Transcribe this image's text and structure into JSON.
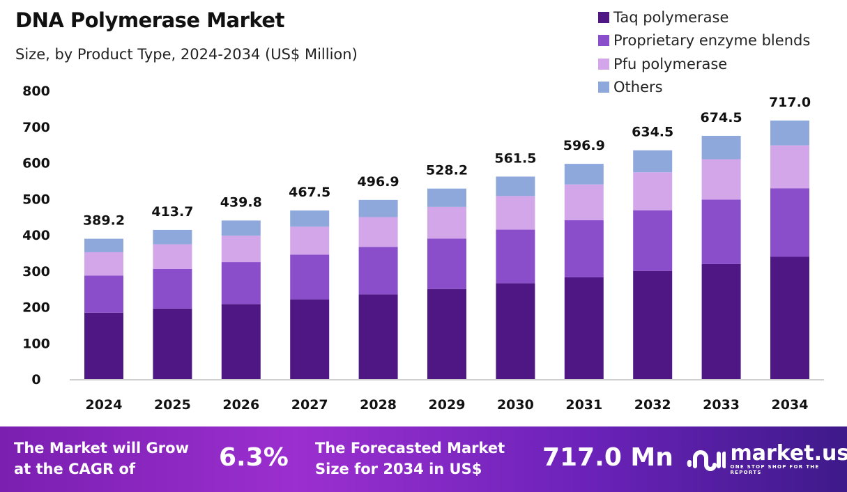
{
  "chart_data": {
    "type": "bar",
    "stacked": true,
    "title": "DNA Polymerase Market",
    "subtitle": "Size, by Product Type, 2024-2034 (US$ Million)",
    "categories": [
      "2024",
      "2025",
      "2026",
      "2027",
      "2028",
      "2029",
      "2030",
      "2031",
      "2032",
      "2033",
      "2034"
    ],
    "totals": [
      "389.2",
      "413.7",
      "439.8",
      "467.5",
      "496.9",
      "528.2",
      "561.5",
      "596.9",
      "634.5",
      "674.5",
      "717.0"
    ],
    "series": [
      {
        "name": "Taq polymerase",
        "color": "#4f1784",
        "values": [
          184.1,
          195.7,
          208.0,
          221.1,
          235.0,
          249.8,
          265.6,
          282.3,
          300.1,
          319.0,
          339.1
        ]
      },
      {
        "name": "Proprietary enzyme blends",
        "color": "#8a4ecb",
        "values": [
          103.1,
          109.6,
          116.5,
          123.9,
          131.7,
          140.0,
          148.8,
          158.2,
          168.1,
          178.7,
          190.0
        ]
      },
      {
        "name": "Pfu polymerase",
        "color": "#d3a6ea",
        "values": [
          64.6,
          68.7,
          73.0,
          77.6,
          82.5,
          87.7,
          93.2,
          99.1,
          105.3,
          112.0,
          119.0
        ]
      },
      {
        "name": "Others",
        "color": "#8fa8dc",
        "values": [
          37.4,
          39.7,
          42.3,
          44.9,
          47.7,
          50.7,
          53.9,
          57.3,
          61.0,
          64.8,
          68.9
        ]
      }
    ],
    "yticks": [
      "0",
      "100",
      "200",
      "300",
      "400",
      "500",
      "600",
      "700",
      "800"
    ],
    "ylim": [
      0,
      800
    ],
    "grid": false,
    "legend": "top-right"
  },
  "footer": {
    "cagr_label": "The Market will Grow at the CAGR of",
    "cagr_value": "6.3%",
    "forecast_label": "The Forecasted Market Size for 2034 in US$",
    "forecast_value": "717.0 Mn",
    "logo_name": "market.us",
    "logo_tagline": "ONE STOP SHOP FOR THE REPORTS"
  }
}
